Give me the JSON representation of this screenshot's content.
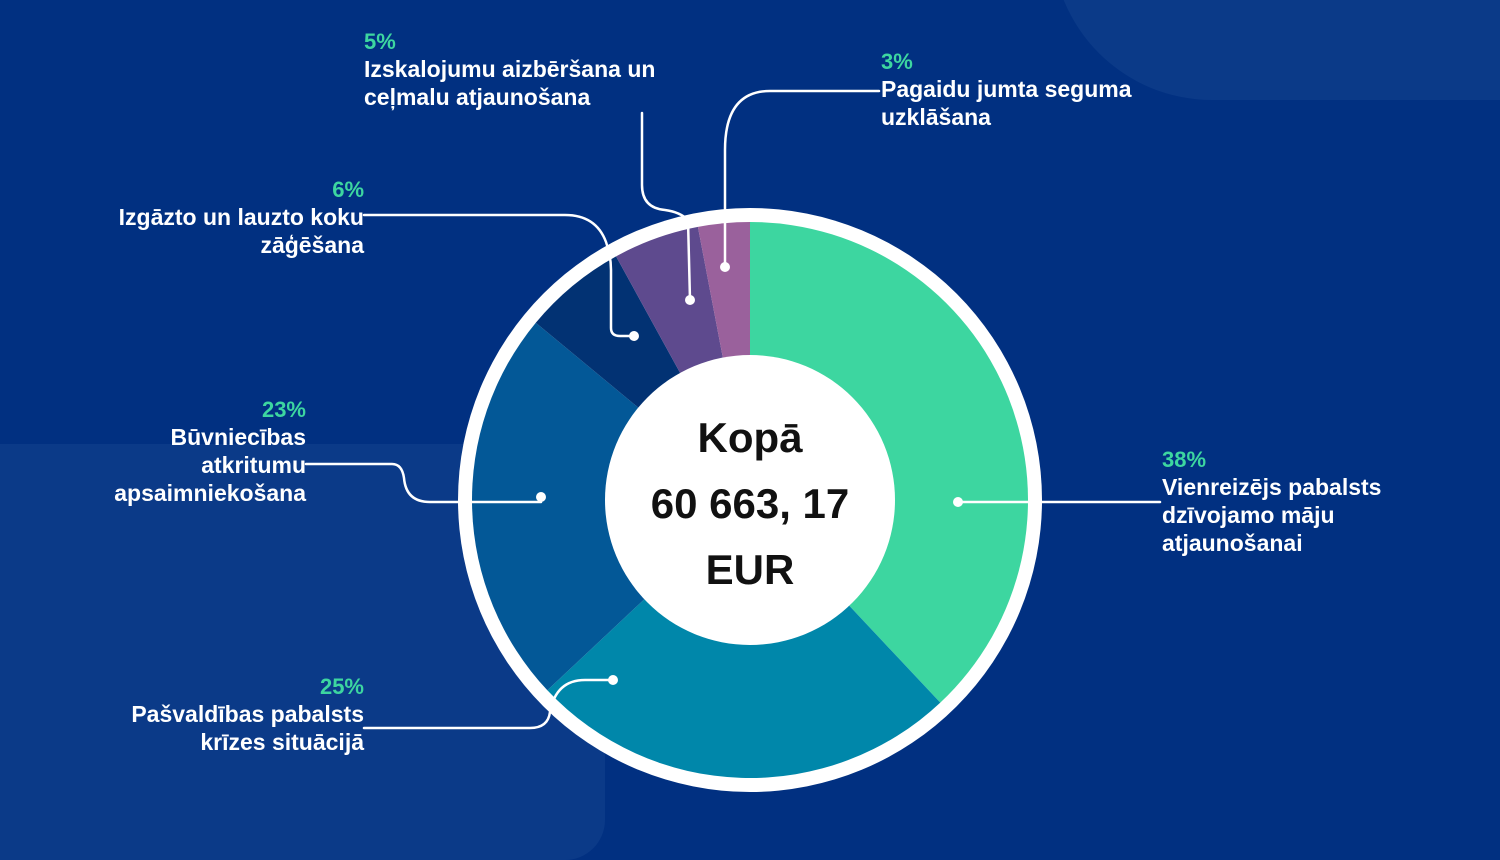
{
  "chart_data": {
    "type": "pie",
    "subtype": "donut",
    "title": "",
    "center_label": [
      "Kopā",
      "60 663, 17",
      "EUR"
    ],
    "total": "60 663, 17 EUR",
    "categories": [
      "Vienreizējs pabalsts dzīvojamo māju atjaunošanai",
      "Pašvaldības pabalsts krīzes situācijā",
      "Būvniecības atkritumu apsaimniekošana",
      "Izgāzto un lauzto koku zāģēšana",
      "Izskalojumu aizbēršana un ceļmalu atjaunošana",
      "Pagaidu jumta seguma uzklāšana"
    ],
    "values": [
      38,
      25,
      23,
      6,
      5,
      3
    ],
    "unit": "%",
    "colors": [
      "#3dd6a0",
      "#0087aa",
      "#035897",
      "#023273",
      "#5e4a8e",
      "#9a619c"
    ],
    "start_angle": "12 o'clock",
    "direction": "clockwise",
    "legend": "callout labels"
  },
  "colors": {
    "background": "#013081",
    "panel": "#0b3a88",
    "accent_pct": "#3dd6a0",
    "label_text": "#ffffff",
    "ring": "#ffffff"
  },
  "callouts": [
    {
      "pct": "38%",
      "label": [
        "Vienreizējs pabalsts",
        "dzīvojamo māju",
        "atjaunošanai"
      ]
    },
    {
      "pct": "25%",
      "label": [
        "Pašvaldības pabalsts",
        "krīzes situācijā"
      ]
    },
    {
      "pct": "23%",
      "label": [
        "Būvniecības",
        "atkritumu",
        "apsaimniekošana"
      ]
    },
    {
      "pct": "6%",
      "label": [
        "Izgāzto un lauzto koku",
        "zāģēšana"
      ]
    },
    {
      "pct": "5%",
      "label": [
        "Izskalojumu aizbēršana un",
        "ceļmalu atjaunošana"
      ]
    },
    {
      "pct": "3%",
      "label": [
        "Pagaidu jumta seguma",
        "uzklāšana"
      ]
    }
  ],
  "center": {
    "line1": "Kopā",
    "line2": "60 663, 17",
    "line3": "EUR"
  }
}
